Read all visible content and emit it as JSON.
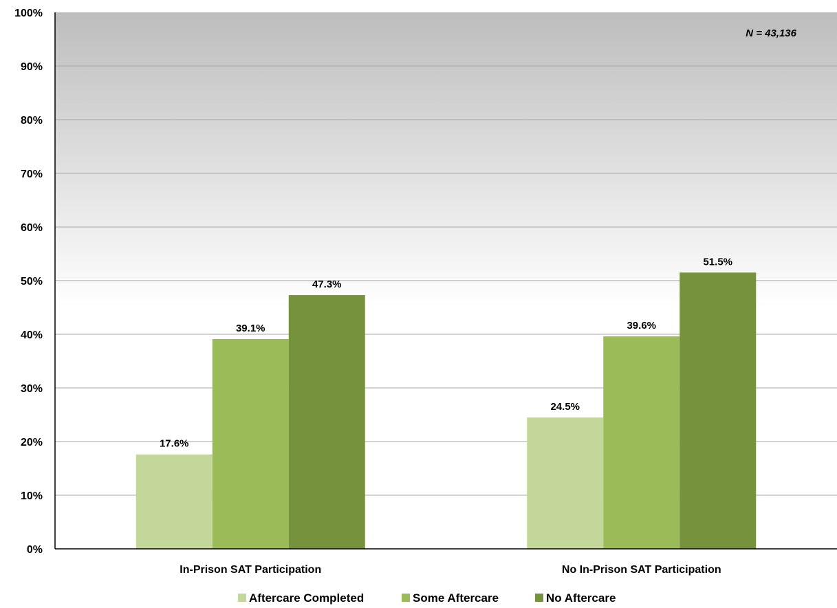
{
  "chart_data": {
    "type": "bar",
    "categories": [
      "In-Prison SAT Participation",
      "No In-Prison SAT Participation"
    ],
    "series": [
      {
        "name": "Aftercare Completed",
        "values": [
          17.6,
          24.5
        ],
        "color": "#c4d79b"
      },
      {
        "name": "Some Aftercare",
        "values": [
          39.1,
          39.6
        ],
        "color": "#9bbb59"
      },
      {
        "name": "No Aftercare",
        "values": [
          47.3,
          51.5
        ],
        "color": "#76923c"
      }
    ],
    "data_labels": [
      [
        "17.6%",
        "24.5%"
      ],
      [
        "39.1%",
        "39.6%"
      ],
      [
        "47.3%",
        "51.5%"
      ]
    ],
    "ylim": [
      0,
      100
    ],
    "yticks": [
      0,
      10,
      20,
      30,
      40,
      50,
      60,
      70,
      80,
      90,
      100
    ],
    "ytick_labels": [
      "0%",
      "10%",
      "20%",
      "30%",
      "40%",
      "50%",
      "60%",
      "70%",
      "80%",
      "90%",
      "100%"
    ],
    "annotation": "N = 43,136",
    "grid": true,
    "legend_position": "bottom",
    "background": "gradient-gray-to-white"
  }
}
